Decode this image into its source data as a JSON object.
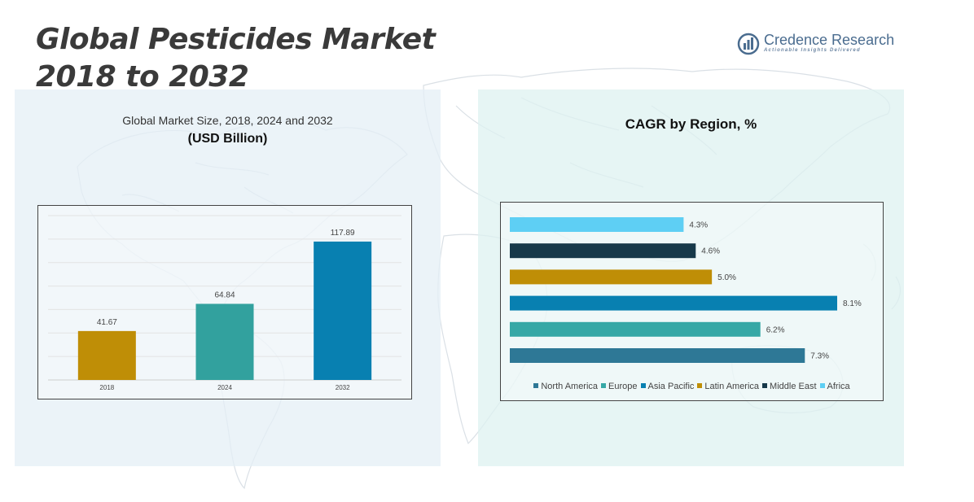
{
  "header": {
    "title_line1": "Global Pesticides Market",
    "title_line2": "2018 to 2032"
  },
  "brand": {
    "name": "Credence Research",
    "tagline": "Actionable Insights Delivered",
    "icon": "bar-chart-logo-icon"
  },
  "market_size_chart": {
    "title": "Global Market Size, 2018, 2024 and 2032",
    "subtitle": "(USD Billion)"
  },
  "cagr_chart": {
    "title": "CAGR by Region, %"
  },
  "chart_data": [
    {
      "type": "bar",
      "title": "Global Market Size, 2018, 2024 and 2032",
      "ylabel": "USD Billion",
      "categories": [
        "2018",
        "2024",
        "2032"
      ],
      "values": [
        41.67,
        64.84,
        117.89
      ],
      "value_labels": [
        "41.67",
        "64.84",
        "117.89"
      ],
      "colors": [
        "#BF8E06",
        "#32A19E",
        "#0880B1"
      ],
      "ylim": [
        0,
        140
      ],
      "grid": true
    },
    {
      "type": "bar",
      "orientation": "horizontal",
      "title": "CAGR by Region, %",
      "categories": [
        "North America",
        "Europe",
        "Asia Pacific",
        "Latin America",
        "Middle East",
        "Africa"
      ],
      "values": [
        7.3,
        6.2,
        8.1,
        5.0,
        4.6,
        4.3
      ],
      "value_labels": [
        "7.3%",
        "6.2%",
        "8.1%",
        "5.0%",
        "4.6%",
        "4.3%"
      ],
      "colors": [
        "#2E7896",
        "#36A8A6",
        "#0880B1",
        "#BF8E06",
        "#17394A",
        "#5ECFF4"
      ],
      "xlim": [
        0,
        8.1
      ],
      "legend": "bottom"
    }
  ]
}
